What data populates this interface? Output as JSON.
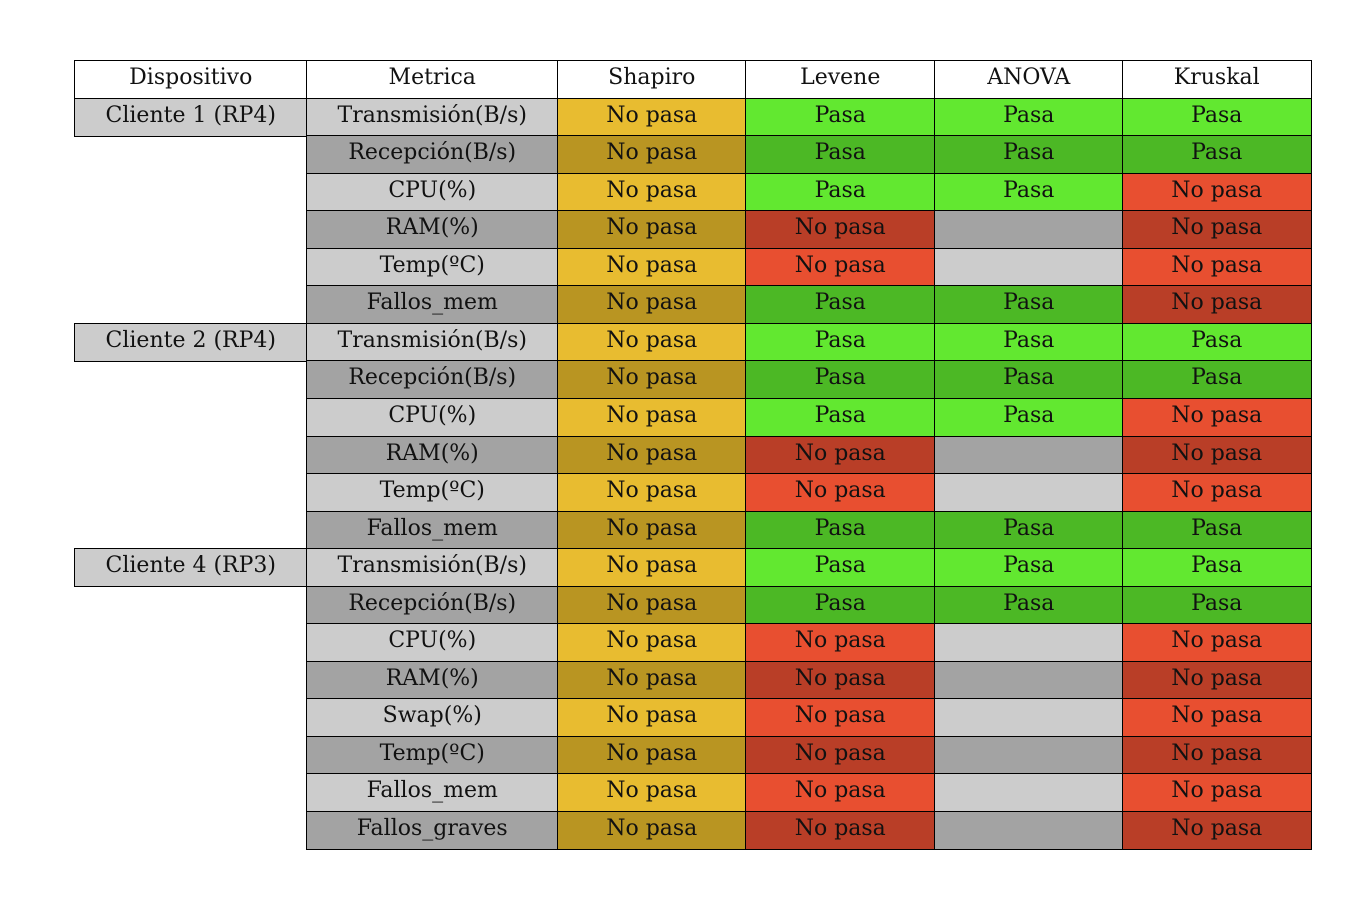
{
  "chart_data": {
    "type": "table",
    "columns": [
      "Dispositivo",
      "Metrica",
      "Shapiro",
      "Levene",
      "ANOVA",
      "Kruskal"
    ],
    "groups": [
      {
        "device": "Cliente 1 (RP4)",
        "rows": [
          {
            "metric": "Transmisión(B/s)",
            "shapiro": "No pasa",
            "levene": "Pasa",
            "anova": "Pasa",
            "kruskal": "Pasa"
          },
          {
            "metric": "Recepción(B/s)",
            "shapiro": "No pasa",
            "levene": "Pasa",
            "anova": "Pasa",
            "kruskal": "Pasa"
          },
          {
            "metric": "CPU(%)",
            "shapiro": "No pasa",
            "levene": "Pasa",
            "anova": "Pasa",
            "kruskal": "No pasa"
          },
          {
            "metric": "RAM(%)",
            "shapiro": "No pasa",
            "levene": "No pasa",
            "anova": "",
            "kruskal": "No pasa"
          },
          {
            "metric": "Temp(ºC)",
            "shapiro": "No pasa",
            "levene": "No pasa",
            "anova": "",
            "kruskal": "No pasa"
          },
          {
            "metric": "Fallos_mem",
            "shapiro": "No pasa",
            "levene": "Pasa",
            "anova": "Pasa",
            "kruskal": "No pasa"
          }
        ]
      },
      {
        "device": "Cliente 2 (RP4)",
        "rows": [
          {
            "metric": "Transmisión(B/s)",
            "shapiro": "No pasa",
            "levene": "Pasa",
            "anova": "Pasa",
            "kruskal": "Pasa"
          },
          {
            "metric": "Recepción(B/s)",
            "shapiro": "No pasa",
            "levene": "Pasa",
            "anova": "Pasa",
            "kruskal": "Pasa"
          },
          {
            "metric": "CPU(%)",
            "shapiro": "No pasa",
            "levene": "Pasa",
            "anova": "Pasa",
            "kruskal": "No pasa"
          },
          {
            "metric": "RAM(%)",
            "shapiro": "No pasa",
            "levene": "No pasa",
            "anova": "",
            "kruskal": "No pasa"
          },
          {
            "metric": "Temp(ºC)",
            "shapiro": "No pasa",
            "levene": "No pasa",
            "anova": "",
            "kruskal": "No pasa"
          },
          {
            "metric": "Fallos_mem",
            "shapiro": "No pasa",
            "levene": "Pasa",
            "anova": "Pasa",
            "kruskal": "Pasa"
          }
        ]
      },
      {
        "device": "Cliente 4 (RP3)",
        "rows": [
          {
            "metric": "Transmisión(B/s)",
            "shapiro": "No pasa",
            "levene": "Pasa",
            "anova": "Pasa",
            "kruskal": "Pasa"
          },
          {
            "metric": "Recepción(B/s)",
            "shapiro": "No pasa",
            "levene": "Pasa",
            "anova": "Pasa",
            "kruskal": "Pasa"
          },
          {
            "metric": "CPU(%)",
            "shapiro": "No pasa",
            "levene": "No pasa",
            "anova": "",
            "kruskal": "No pasa"
          },
          {
            "metric": "RAM(%)",
            "shapiro": "No pasa",
            "levene": "No pasa",
            "anova": "",
            "kruskal": "No pasa"
          },
          {
            "metric": "Swap(%)",
            "shapiro": "No pasa",
            "levene": "No pasa",
            "anova": "",
            "kruskal": "No pasa"
          },
          {
            "metric": "Temp(ºC)",
            "shapiro": "No pasa",
            "levene": "No pasa",
            "anova": "",
            "kruskal": "No pasa"
          },
          {
            "metric": "Fallos_mem",
            "shapiro": "No pasa",
            "levene": "No pasa",
            "anova": "",
            "kruskal": "No pasa"
          },
          {
            "metric": "Fallos_graves",
            "shapiro": "No pasa",
            "levene": "No pasa",
            "anova": "",
            "kruskal": "No pasa"
          }
        ]
      }
    ]
  },
  "colors": {
    "header_bg": "#ffffff",
    "device_bg": "#cccccc",
    "metric_light": "#cccccc",
    "metric_dark": "#a3a3a3",
    "shapiro_light": "#e8bc30",
    "shapiro_dark": "#b99522",
    "pass_light": "#62e830",
    "pass_dark": "#4cb825",
    "fail_light": "#e84f30",
    "fail_dark": "#b93e27",
    "empty_light": "#cccccc",
    "empty_dark": "#a3a3a3"
  }
}
